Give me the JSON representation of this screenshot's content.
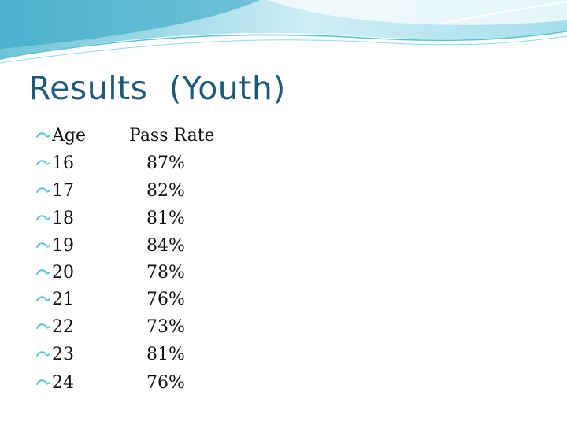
{
  "slide": {
    "title": "Results  (Youth)",
    "header": {
      "age": "Age",
      "rate": "Pass Rate"
    },
    "rows": [
      {
        "age": "16",
        "rate": "87%"
      },
      {
        "age": "17",
        "rate": "82%"
      },
      {
        "age": "18",
        "rate": "81%"
      },
      {
        "age": "19",
        "rate": "84%"
      },
      {
        "age": "20",
        "rate": "78%"
      },
      {
        "age": "21",
        "rate": "76%"
      },
      {
        "age": "22",
        "rate": "73%"
      },
      {
        "age": "23",
        "rate": "81%"
      },
      {
        "age": "24",
        "rate": "76%"
      }
    ],
    "colors": {
      "title": "#1e5a78",
      "bullet": "#5cc3d6",
      "wave_light": "#c9eef5",
      "wave_dark": "#4fb6cf"
    },
    "icons": {
      "bullet": "curl-bullet-icon"
    }
  }
}
